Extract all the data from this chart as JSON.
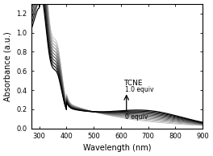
{
  "xmin": 270,
  "xmax": 900,
  "ymin": 0,
  "ymax": 1.3,
  "xlabel": "Wavelength (nm)",
  "ylabel": "Absorbance (a.u.)",
  "n_curves": 11,
  "annotation_text": "TCNE",
  "annotation_top": "1.0 equiv",
  "annotation_bottom": "0 equiv",
  "background_color": "#ffffff",
  "spine_color": "#000000",
  "yticks": [
    0.0,
    0.2,
    0.4,
    0.6,
    0.8,
    1.0,
    1.2
  ],
  "xticks": [
    300,
    400,
    500,
    600,
    700,
    800,
    900
  ]
}
